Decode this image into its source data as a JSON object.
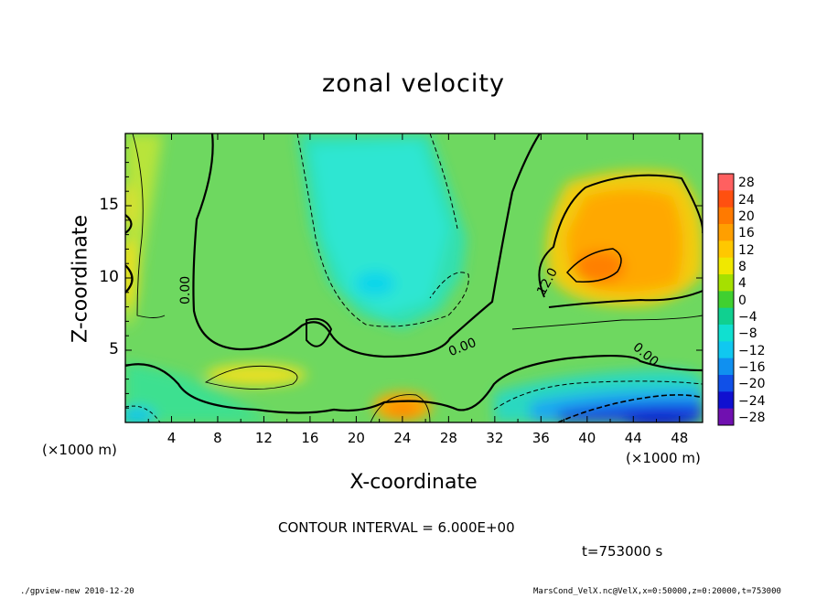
{
  "chart_data": {
    "type": "heatmap",
    "title": "zonal velocity",
    "xlabel": "X-coordinate",
    "ylabel": "Z-coordinate",
    "x_unit_left": "(×1000 m)",
    "x_unit_right": "(×1000 m)",
    "xlim": [
      0,
      50
    ],
    "ylim": [
      0,
      20
    ],
    "x_ticks": [
      "4",
      "8",
      "12",
      "16",
      "20",
      "24",
      "28",
      "32",
      "36",
      "40",
      "44",
      "48"
    ],
    "x_tick_values": [
      4,
      8,
      12,
      16,
      20,
      24,
      28,
      32,
      36,
      40,
      44,
      48
    ],
    "y_ticks": [
      "5",
      "10",
      "15"
    ],
    "y_tick_values": [
      5,
      10,
      15
    ],
    "colorbar": {
      "labels": [
        "28",
        "24",
        "20",
        "16",
        "12",
        "8",
        "4",
        "0",
        "−4",
        "−8",
        "−12",
        "−16",
        "−20",
        "−24",
        "−28"
      ],
      "values": [
        28,
        24,
        20,
        16,
        12,
        8,
        4,
        0,
        -4,
        -8,
        -12,
        -16,
        -20,
        -24,
        -28
      ],
      "colors": [
        "#ff6060",
        "#ff5010",
        "#ff7a00",
        "#ff9f00",
        "#ffc800",
        "#f0e800",
        "#a6e000",
        "#40d030",
        "#10d090",
        "#10e0d0",
        "#10c8f0",
        "#1090f0",
        "#1050e8",
        "#1010d0",
        "#7010b0"
      ]
    },
    "contour_labels": [
      "0.00",
      "0.00",
      "0.00",
      "12.0"
    ],
    "features": [
      {
        "desc": "weak negative core",
        "x": 22,
        "z": 10,
        "value": -10
      },
      {
        "desc": "positive core",
        "x": 41,
        "z": 11,
        "value": 20
      },
      {
        "desc": "near-surface positive",
        "x": 23,
        "z": 1,
        "value": 18
      },
      {
        "desc": "near-surface negative",
        "x": 45,
        "z": 1,
        "value": -20
      },
      {
        "desc": "left positive edge",
        "x": 0,
        "z": 12,
        "value": 10
      }
    ]
  },
  "contour_interval_text": "CONTOUR INTERVAL = 6.000E+00",
  "time_text": "t=753000 s",
  "footer_left": "./gpview-new   2010-12-20",
  "footer_right": "MarsCond_VelX.nc@VelX,x=0:50000,z=0:20000,t=753000"
}
